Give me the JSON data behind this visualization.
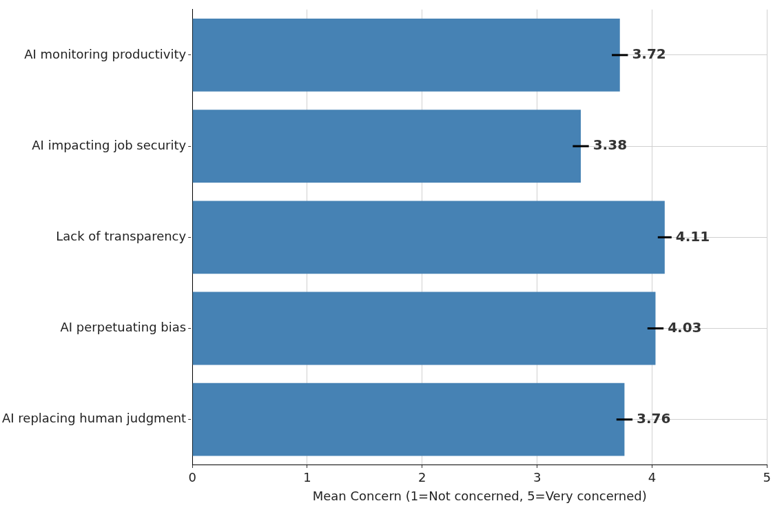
{
  "chart_data": {
    "type": "bar",
    "orientation": "horizontal",
    "xlabel": "Mean Concern (1=Not concerned, 5=Very concerned)",
    "categories": [
      "AI monitoring productivity",
      "AI impacting job security",
      "Lack of transparency",
      "AI perpetuating bias",
      "AI replacing human judgment"
    ],
    "values": [
      3.72,
      3.38,
      4.11,
      4.03,
      3.76
    ],
    "errors": [
      0.07,
      0.07,
      0.06,
      0.07,
      0.07
    ],
    "color": "#4682b4",
    "xlim": [
      0,
      5
    ],
    "xticks": [
      0,
      1,
      2,
      3,
      4,
      5
    ],
    "data_labels": true,
    "grid": true,
    "legend": false
  }
}
